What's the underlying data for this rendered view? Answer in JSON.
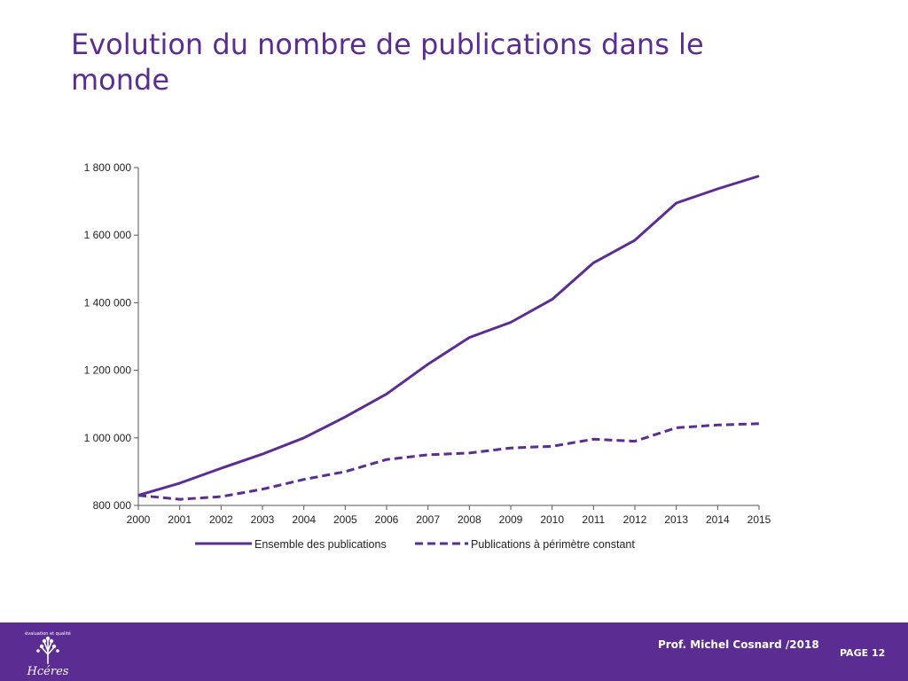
{
  "slide": {
    "title": "Evolution du nombre de publications dans le monde",
    "author": "Prof. Michel Cosnard /2018",
    "page": "PAGE 12",
    "logo_text": "Hcéres",
    "logo_subtext": "évaluation et qualité"
  },
  "colors": {
    "accent": "#5b2c91",
    "footer_bg": "#5b2c91"
  },
  "chart_data": {
    "type": "line",
    "x": [
      2000,
      2001,
      2002,
      2003,
      2004,
      2005,
      2006,
      2007,
      2008,
      2009,
      2010,
      2011,
      2012,
      2013,
      2014,
      2015
    ],
    "series": [
      {
        "name": "Ensemble des publications",
        "style": "solid",
        "values": [
          830000,
          866000,
          910000,
          952000,
          1000000,
          1062000,
          1130000,
          1218000,
          1297000,
          1342000,
          1410000,
          1518000,
          1585000,
          1695000,
          1737000,
          1775000
        ]
      },
      {
        "name": "Publications à périmètre constant",
        "style": "dashed",
        "values": [
          830000,
          818000,
          826000,
          848000,
          877000,
          900000,
          936000,
          950000,
          955000,
          970000,
          975000,
          996000,
          990000,
          1030000,
          1038000,
          1042000
        ]
      }
    ],
    "ylim": [
      800000,
      1800000
    ],
    "yticks": [
      800000,
      1000000,
      1200000,
      1400000,
      1600000,
      1800000
    ],
    "ytick_labels": [
      "800 000",
      "1 000 000",
      "1 200 000",
      "1 400 000",
      "1 600 000",
      "1 800 000"
    ],
    "legend_position": "bottom",
    "grid": false,
    "series_color": "#5b2c91"
  }
}
